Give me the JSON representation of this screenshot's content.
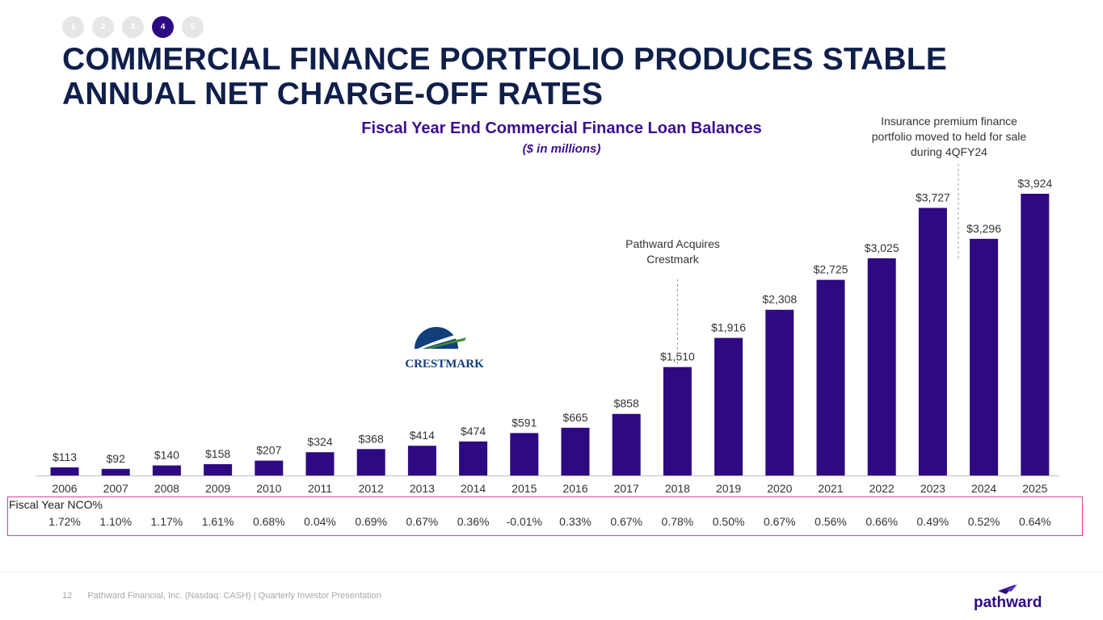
{
  "nav": {
    "steps": [
      "1",
      "2",
      "3",
      "4",
      "5"
    ],
    "active_index": 3
  },
  "title": "COMMERCIAL FINANCE PORTFOLIO PRODUCES STABLE ANNUAL NET CHARGE-OFF RATES",
  "annotations": {
    "crestmark": "Pathward Acquires Crestmark",
    "insurance": "Insurance premium finance portfolio moved to held for sale during 4QFY24"
  },
  "logos": {
    "crestmark": "CRESTMARK",
    "pathward": "pathward"
  },
  "nco_label": "Fiscal Year NCO%",
  "footer": {
    "page": "12",
    "text": "Pathward Financial, Inc. (Nasdaq: CASH) | Quarterly Investor Presentation"
  },
  "colors": {
    "bar": "#2e0a82",
    "title": "#0f1f4a",
    "chart_title": "#3b108f",
    "highlight_box": "#d1449a"
  },
  "chart_data": {
    "type": "bar",
    "title": "Fiscal Year End Commercial Finance Loan Balances",
    "subtitle": "($ in millions)",
    "categories": [
      "2006",
      "2007",
      "2008",
      "2009",
      "2010",
      "2011",
      "2012",
      "2013",
      "2014",
      "2015",
      "2016",
      "2017",
      "2018",
      "2019",
      "2020",
      "2021",
      "2022",
      "2023",
      "2024",
      "2025"
    ],
    "values": [
      113,
      92,
      140,
      158,
      207,
      324,
      368,
      414,
      474,
      591,
      665,
      858,
      1510,
      1916,
      2308,
      2725,
      3025,
      3727,
      3296,
      3924
    ],
    "value_labels": [
      "$113",
      "$92",
      "$140",
      "$158",
      "$207",
      "$324",
      "$368",
      "$414",
      "$474",
      "$591",
      "$665",
      "$858",
      "$1,510",
      "$1,916",
      "$2,308",
      "$2,725",
      "$3,025",
      "$3,727",
      "$3,296",
      "$3,924"
    ],
    "nco_rates": [
      "1.72%",
      "1.10%",
      "1.17%",
      "1.61%",
      "0.68%",
      "0.04%",
      "0.69%",
      "0.67%",
      "0.36%",
      "-0.01%",
      "0.33%",
      "0.67%",
      "0.78%",
      "0.50%",
      "0.67%",
      "0.56%",
      "0.66%",
      "0.49%",
      "0.52%",
      "0.64%"
    ],
    "ylim": [
      0,
      3924
    ],
    "grid": false,
    "legend": "none"
  }
}
